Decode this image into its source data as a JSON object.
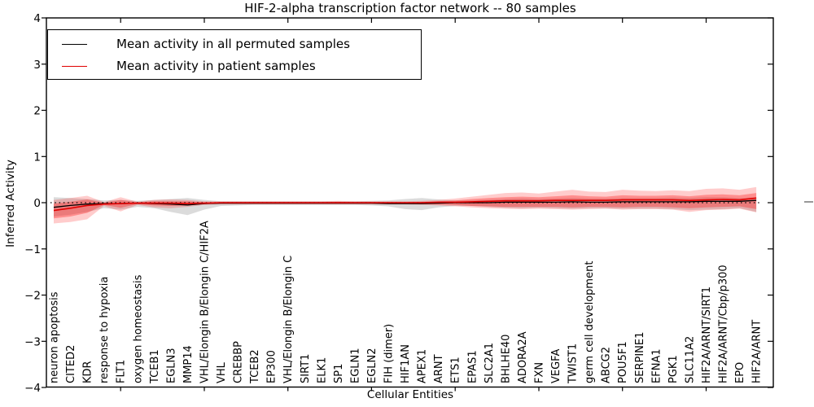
{
  "title": "HIF-2-alpha transcription factor network -- 80 samples",
  "legend": {
    "items": [
      {
        "label": "Mean activity in all permuted samples",
        "color": "#000000"
      },
      {
        "label": "Mean activity in patient samples",
        "color": "#e00000"
      }
    ]
  },
  "chart_data": {
    "type": "line",
    "title": "HIF-2-alpha transcription factor network -- 80 samples",
    "xlabel": "Cellular Entities",
    "ylabel": "Inferred Activity",
    "ylim": [
      -4,
      4
    ],
    "ytick_labels": [
      "4",
      "3",
      "2",
      "1",
      "0",
      "−1",
      "−2",
      "−3",
      "−4"
    ],
    "ytick_values": [
      4,
      3,
      2,
      1,
      0,
      -1,
      -2,
      -3,
      -4
    ],
    "xtick_marks_at_indices": [
      4,
      9,
      14,
      19,
      24,
      29,
      34,
      39
    ],
    "grid": false,
    "zero_line_dotted": true,
    "legend_position": "upper left",
    "categories": [
      "neuron apoptosis",
      "CITED2",
      "KDR",
      "response to hypoxia",
      "FLT1",
      "oxygen homeostasis",
      "TCEB1",
      "EGLN3",
      "MMP14",
      "VHL/Elongin B/Elongin C/HIF2A",
      "VHL",
      "CREBBP",
      "TCEB2",
      "EP300",
      "VHL/Elongin B/Elongin C",
      "SIRT1",
      "ELK1",
      "SP1",
      "EGLN1",
      "EGLN2",
      "FIH (dimer)",
      "HIF1AN",
      "APEX1",
      "ARNT",
      "ETS1",
      "EPAS1",
      "SLC2A1",
      "BHLHE40",
      "ADORA2A",
      "FXN",
      "VEGFA",
      "TWIST1",
      "germ cell development",
      "ABCG2",
      "POU5F1",
      "SERPINE1",
      "EFNA1",
      "PGK1",
      "SLC11A2",
      "HIF2A/ARNT/SIRT1",
      "HIF2A/ARNT/Cbp/p300",
      "EPO",
      "HIF2A/ARNT"
    ],
    "series": [
      {
        "name": "Mean activity in all permuted samples",
        "color": "#000000",
        "width": 1.3,
        "values": [
          -0.1,
          -0.06,
          -0.03,
          -0.02,
          -0.02,
          -0.01,
          -0.02,
          -0.03,
          -0.05,
          -0.02,
          -0.01,
          -0.01,
          -0.01,
          -0.01,
          -0.01,
          -0.01,
          -0.01,
          -0.01,
          -0.01,
          -0.01,
          -0.02,
          -0.02,
          -0.02,
          -0.01,
          0.0,
          0.0,
          0.0,
          0.01,
          0.01,
          0.01,
          0.01,
          0.02,
          0.01,
          0.01,
          0.02,
          0.02,
          0.02,
          0.02,
          0.02,
          0.03,
          0.03,
          0.03,
          0.05
        ]
      },
      {
        "name": "Mean activity in patient samples",
        "color": "#e00000",
        "width": 1.6,
        "values": [
          -0.17,
          -0.12,
          -0.06,
          -0.03,
          -0.02,
          -0.01,
          -0.01,
          -0.01,
          -0.02,
          -0.01,
          0.0,
          0.0,
          0.0,
          0.0,
          0.0,
          0.0,
          0.0,
          0.0,
          0.0,
          0.0,
          0.0,
          0.0,
          0.0,
          0.01,
          0.01,
          0.02,
          0.03,
          0.04,
          0.04,
          0.04,
          0.05,
          0.05,
          0.05,
          0.05,
          0.06,
          0.06,
          0.06,
          0.06,
          0.05,
          0.06,
          0.07,
          0.06,
          0.1
        ]
      }
    ],
    "bands": [
      {
        "name": "permuted-samples-range",
        "color": "rgba(0,0,0,0.14)",
        "hi": [
          0.12,
          0.1,
          0.08,
          0.05,
          0.06,
          0.04,
          0.06,
          0.08,
          0.1,
          0.06,
          0.03,
          0.03,
          0.03,
          0.03,
          0.03,
          0.03,
          0.03,
          0.03,
          0.03,
          0.04,
          0.05,
          0.08,
          0.1,
          0.07,
          0.05,
          0.05,
          0.06,
          0.08,
          0.09,
          0.08,
          0.09,
          0.1,
          0.09,
          0.09,
          0.1,
          0.1,
          0.1,
          0.11,
          0.1,
          0.12,
          0.12,
          0.1,
          0.12
        ],
        "lo": [
          -0.3,
          -0.26,
          -0.2,
          -0.12,
          -0.15,
          -0.09,
          -0.12,
          -0.2,
          -0.27,
          -0.15,
          -0.07,
          -0.06,
          -0.05,
          -0.05,
          -0.05,
          -0.05,
          -0.05,
          -0.05,
          -0.05,
          -0.06,
          -0.08,
          -0.14,
          -0.16,
          -0.1,
          -0.07,
          -0.07,
          -0.09,
          -0.11,
          -0.12,
          -0.11,
          -0.12,
          -0.13,
          -0.12,
          -0.12,
          -0.13,
          -0.13,
          -0.13,
          -0.14,
          -0.16,
          -0.15,
          -0.14,
          -0.12,
          -0.2
        ]
      },
      {
        "name": "patient-samples-range-outer",
        "color": "rgba(255,0,0,0.20)",
        "hi": [
          0.06,
          0.1,
          0.15,
          0.01,
          0.12,
          0.02,
          0.06,
          0.07,
          0.06,
          0.03,
          0.03,
          0.03,
          0.03,
          0.03,
          0.03,
          0.03,
          0.03,
          0.04,
          0.03,
          0.03,
          0.03,
          0.03,
          0.04,
          0.06,
          0.09,
          0.13,
          0.17,
          0.21,
          0.22,
          0.2,
          0.24,
          0.28,
          0.24,
          0.23,
          0.28,
          0.26,
          0.25,
          0.27,
          0.25,
          0.3,
          0.31,
          0.28,
          0.34
        ],
        "lo": [
          -0.45,
          -0.42,
          -0.36,
          -0.07,
          -0.19,
          -0.05,
          -0.1,
          -0.12,
          -0.09,
          -0.05,
          -0.04,
          -0.04,
          -0.04,
          -0.04,
          -0.04,
          -0.04,
          -0.04,
          -0.04,
          -0.04,
          -0.04,
          -0.04,
          -0.04,
          -0.05,
          -0.06,
          -0.08,
          -0.1,
          -0.12,
          -0.13,
          -0.14,
          -0.13,
          -0.14,
          -0.15,
          -0.14,
          -0.13,
          -0.15,
          -0.14,
          -0.14,
          -0.15,
          -0.2,
          -0.16,
          -0.15,
          -0.13,
          -0.21
        ]
      },
      {
        "name": "patient-samples-range-inner",
        "color": "rgba(255,0,0,0.30)",
        "hi": [
          -0.02,
          0.02,
          0.07,
          0.0,
          0.06,
          0.01,
          0.03,
          0.03,
          0.03,
          0.01,
          0.01,
          0.01,
          0.01,
          0.01,
          0.01,
          0.01,
          0.01,
          0.02,
          0.01,
          0.01,
          0.01,
          0.01,
          0.02,
          0.03,
          0.05,
          0.08,
          0.1,
          0.12,
          0.13,
          0.12,
          0.14,
          0.16,
          0.14,
          0.13,
          0.16,
          0.15,
          0.15,
          0.16,
          0.14,
          0.17,
          0.18,
          0.16,
          0.21
        ],
        "lo": [
          -0.34,
          -0.3,
          -0.22,
          -0.05,
          -0.11,
          -0.03,
          -0.06,
          -0.07,
          -0.06,
          -0.03,
          -0.02,
          -0.02,
          -0.02,
          -0.02,
          -0.02,
          -0.02,
          -0.02,
          -0.02,
          -0.02,
          -0.02,
          -0.02,
          -0.02,
          -0.03,
          -0.04,
          -0.05,
          -0.07,
          -0.08,
          -0.09,
          -0.09,
          -0.09,
          -0.09,
          -0.1,
          -0.09,
          -0.09,
          -0.1,
          -0.09,
          -0.09,
          -0.1,
          -0.12,
          -0.1,
          -0.09,
          -0.08,
          -0.14
        ]
      }
    ]
  }
}
